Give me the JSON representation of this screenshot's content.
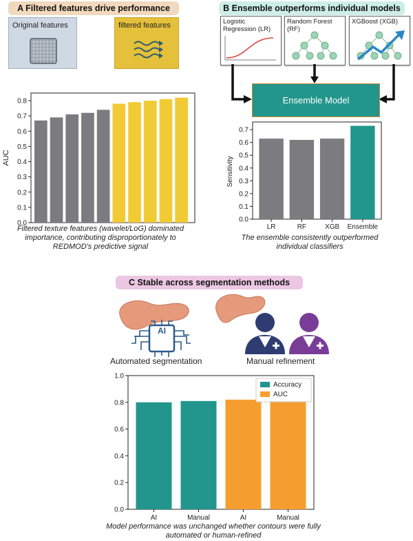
{
  "panelA": {
    "banner": "A  Filtered features drive performance",
    "tiles": {
      "original": "Original features",
      "filtered": "filtered features"
    },
    "caption": "Filtered texture features (wavelet/LoG) dominated importance, contributing disproportionately to REDMOD's predictive signal"
  },
  "panelB": {
    "banner": "B  Ensemble outperforms individual models",
    "models": {
      "lr": "Logistic Regression (LR)",
      "rf": "Random Forest (RF)",
      "xgb": "XGBoost (XGB)"
    },
    "ensemble_label": "Ensemble Model",
    "caption": "The ensemble consistently outperformed individual classifiers"
  },
  "panelC": {
    "banner": "C  Stable across segmentation methods",
    "icon_labels": {
      "auto": "Automated segmentation",
      "manual": "Manual refinement"
    },
    "ai_chip": "AI",
    "caption": "Model performance was unchanged whether contours were fully automated or human-refined"
  },
  "colors": {
    "gray": "#7c7b80",
    "yellow": "#f1cb35",
    "teal": "#22968c",
    "orange": "#f59e2f"
  },
  "chart_data": [
    {
      "type": "bar",
      "ylabel": "AUC",
      "ylim": [
        0,
        0.85
      ],
      "yticks": [
        0.0,
        0.1,
        0.2,
        0.3,
        0.4,
        0.5,
        0.6,
        0.7,
        0.8
      ],
      "values": [
        0.67,
        0.69,
        0.71,
        0.72,
        0.74,
        0.78,
        0.79,
        0.8,
        0.81,
        0.82
      ],
      "bar_colors": [
        "gray",
        "gray",
        "gray",
        "gray",
        "gray",
        "yellow",
        "yellow",
        "yellow",
        "yellow",
        "yellow"
      ],
      "grid": false
    },
    {
      "type": "bar",
      "categories": [
        "LR",
        "RF",
        "XGB",
        "Ensemble"
      ],
      "values": [
        0.63,
        0.62,
        0.63,
        0.73
      ],
      "ylabel": "Sensitivity",
      "ylim": [
        0,
        0.76
      ],
      "yticks": [
        0.0,
        0.1,
        0.2,
        0.3,
        0.4,
        0.5,
        0.6,
        0.7
      ],
      "bar_colors": [
        "gray",
        "gray",
        "gray",
        "teal"
      ],
      "grid": false
    },
    {
      "type": "bar",
      "categories": [
        "AI",
        "Manual",
        "AI",
        "Manual"
      ],
      "series": [
        {
          "name": "Accuracy",
          "color": "teal"
        },
        {
          "name": "AUC",
          "color": "orange"
        }
      ],
      "values": [
        0.8,
        0.81,
        0.82,
        0.82
      ],
      "bar_series": [
        0,
        0,
        1,
        1
      ],
      "ylim": [
        0,
        1.0
      ],
      "yticks": [
        0.0,
        0.2,
        0.4,
        0.6,
        0.8,
        1.0
      ],
      "legend": "top-right",
      "grid": false
    }
  ]
}
